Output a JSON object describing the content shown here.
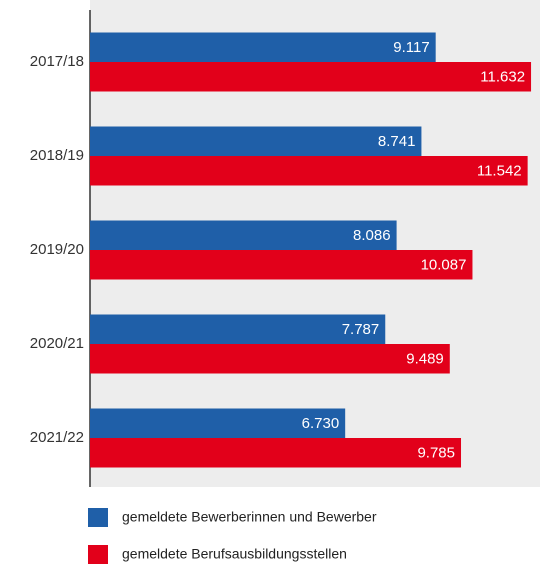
{
  "chart_data": {
    "type": "bar",
    "orientation": "horizontal",
    "categories": [
      "2017/18",
      "2018/19",
      "2019/20",
      "2020/21",
      "2021/22"
    ],
    "series": [
      {
        "name": "gemeldete Bewerberinnen und Bewerber",
        "color": "#1f5fa8",
        "values": [
          9117,
          8741,
          8086,
          7787,
          6730
        ],
        "value_labels": [
          "9.117",
          "8.741",
          "8.086",
          "7.787",
          "6.730"
        ]
      },
      {
        "name": "gemeldete Berufsausbildungsstellen",
        "color": "#e2001a",
        "values": [
          11632,
          11542,
          10087,
          9489,
          9785
        ],
        "value_labels": [
          "11.632",
          "11.542",
          "10.087",
          "9.489",
          "9.785"
        ]
      }
    ],
    "xlim": [
      0,
      12000
    ]
  }
}
